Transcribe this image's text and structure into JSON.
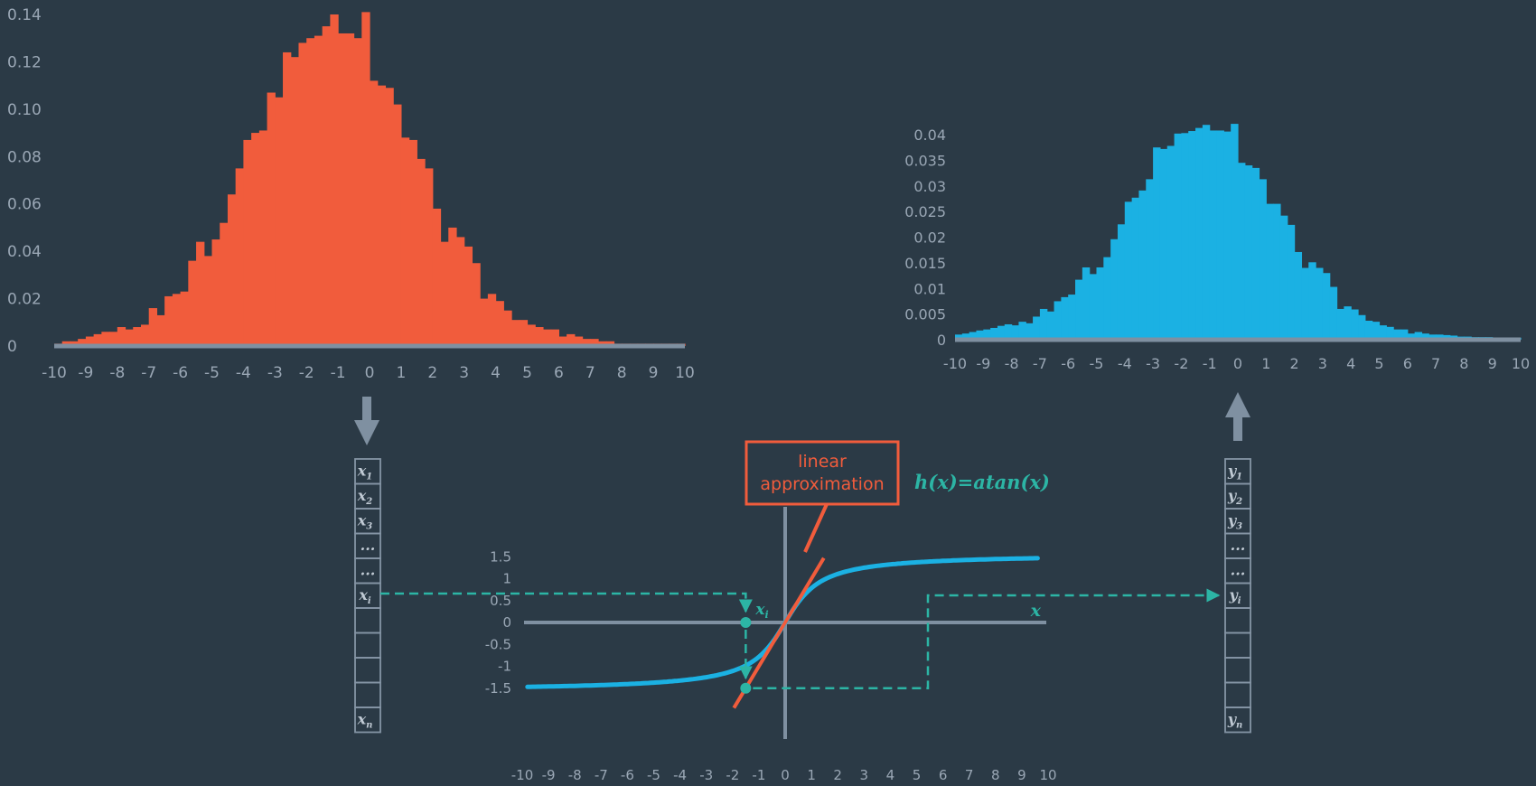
{
  "colors": {
    "background": "#2b3a46",
    "input_hist": "#f15c3c",
    "output_hist": "#1bb1e3",
    "axis": "#7f90a1",
    "tick_text": "#9aa7b5",
    "atan_curve": "#1bb1e3",
    "linear_line": "#f15c3c",
    "dashed": "#2cb5a5"
  },
  "chart_data": [
    {
      "type": "bar",
      "x": [
        -9.75,
        -9.5,
        -9.25,
        -9,
        -8.75,
        -8.5,
        -8.25,
        -8,
        -7.75,
        -7.5,
        -7.25,
        -7,
        -6.75,
        -6.5,
        -6.25,
        -6,
        -5.75,
        -5.5,
        -5.25,
        -5,
        -4.75,
        -4.5,
        -4.25,
        -4,
        -3.75,
        -3.5,
        -3.25,
        -3,
        -2.75,
        -2.5,
        -2.25,
        -2,
        -1.75,
        -1.5,
        -1.25,
        -1,
        -0.75,
        -0.5,
        -0.25,
        0,
        0.25,
        0.5,
        0.75,
        1,
        1.25,
        1.5,
        1.75,
        2,
        2.25,
        2.5,
        2.75,
        3,
        3.25,
        3.5,
        3.75,
        4,
        4.25,
        4.5,
        4.75,
        5,
        5.25,
        5.5,
        5.75,
        6,
        6.25,
        6.5,
        6.75,
        7,
        7.25,
        7.5,
        7.75,
        8,
        8.25,
        8.5,
        8.75,
        9,
        9.25,
        9.5,
        9.75,
        10
      ],
      "values": [
        0.001,
        0.002,
        0.002,
        0.003,
        0.004,
        0.005,
        0.006,
        0.006,
        0.008,
        0.007,
        0.008,
        0.009,
        0.016,
        0.013,
        0.021,
        0.022,
        0.023,
        0.036,
        0.044,
        0.038,
        0.045,
        0.052,
        0.064,
        0.075,
        0.087,
        0.09,
        0.091,
        0.107,
        0.105,
        0.124,
        0.122,
        0.128,
        0.13,
        0.131,
        0.135,
        0.14,
        0.132,
        0.132,
        0.13,
        0.141,
        0.112,
        0.11,
        0.109,
        0.102,
        0.088,
        0.087,
        0.079,
        0.075,
        0.058,
        0.044,
        0.05,
        0.046,
        0.042,
        0.035,
        0.02,
        0.022,
        0.019,
        0.015,
        0.011,
        0.011,
        0.009,
        0.008,
        0.007,
        0.007,
        0.004,
        0.005,
        0.004,
        0.003,
        0.003,
        0.002,
        0.002,
        0.001,
        0.001,
        0.001,
        0.001,
        0.001,
        0.001,
        0.001,
        0.001,
        0.001
      ],
      "xlim": [
        -10,
        10
      ],
      "ylim": [
        0,
        0.14
      ],
      "xticks": [
        "-10",
        "-9",
        "-8",
        "-7",
        "-6",
        "-5",
        "-4",
        "-3",
        "-2",
        "-1",
        "0",
        "1",
        "2",
        "3",
        "4",
        "5",
        "6",
        "7",
        "8",
        "9",
        "10"
      ],
      "yticks": [
        "0",
        "0.02",
        "0.04",
        "0.06",
        "0.08",
        "0.10",
        "0.12",
        "0.14"
      ]
    },
    {
      "type": "bar",
      "x": [
        -9.75,
        -9.5,
        -9.25,
        -9,
        -8.75,
        -8.5,
        -8.25,
        -8,
        -7.75,
        -7.5,
        -7.25,
        -7,
        -6.75,
        -6.5,
        -6.25,
        -6,
        -5.75,
        -5.5,
        -5.25,
        -5,
        -4.75,
        -4.5,
        -4.25,
        -4,
        -3.75,
        -3.5,
        -3.25,
        -3,
        -2.75,
        -2.5,
        -2.25,
        -2,
        -1.75,
        -1.5,
        -1.25,
        -1,
        -0.75,
        -0.5,
        -0.25,
        0,
        0.25,
        0.5,
        0.75,
        1,
        1.25,
        1.5,
        1.75,
        2,
        2.25,
        2.5,
        2.75,
        3,
        3.25,
        3.5,
        3.75,
        4,
        4.25,
        4.5,
        4.75,
        5,
        5.25,
        5.5,
        5.75,
        6,
        6.25,
        6.5,
        6.75,
        7,
        7.25,
        7.5,
        7.75,
        8,
        8.25,
        8.5,
        8.75,
        9,
        9.25,
        9.5,
        9.75,
        10
      ],
      "values": [
        0.001,
        0.0012,
        0.0015,
        0.0018,
        0.002,
        0.0023,
        0.0027,
        0.003,
        0.0028,
        0.0035,
        0.0032,
        0.0045,
        0.006,
        0.0055,
        0.0075,
        0.0083,
        0.0088,
        0.0117,
        0.0141,
        0.0128,
        0.0141,
        0.0161,
        0.0196,
        0.0225,
        0.0269,
        0.0277,
        0.0291,
        0.0313,
        0.0375,
        0.0372,
        0.0378,
        0.0402,
        0.0403,
        0.0407,
        0.0413,
        0.0419,
        0.0408,
        0.0408,
        0.0406,
        0.0421,
        0.0345,
        0.034,
        0.0335,
        0.0313,
        0.0265,
        0.0265,
        0.0242,
        0.0224,
        0.0171,
        0.014,
        0.0151,
        0.014,
        0.013,
        0.0103,
        0.006,
        0.0065,
        0.0059,
        0.0048,
        0.0037,
        0.0035,
        0.0028,
        0.0025,
        0.002,
        0.002,
        0.0012,
        0.0015,
        0.0012,
        0.001,
        0.001,
        0.0009,
        0.0008,
        0.0006,
        0.0006,
        0.0005,
        0.0005,
        0.0005,
        0.0004,
        0.0004,
        0.0004,
        0.0004
      ],
      "xlim": [
        -10,
        10
      ],
      "ylim": [
        0,
        0.04
      ],
      "xticks": [
        "-10",
        "-9",
        "-8",
        "-7",
        "-6",
        "-5",
        "-4",
        "-3",
        "-2",
        "-1",
        "0",
        "1",
        "2",
        "3",
        "4",
        "5",
        "6",
        "7",
        "8",
        "9",
        "10"
      ],
      "yticks": [
        "0",
        "0.005",
        "0.01",
        "0.015",
        "0.02",
        "0.025",
        "0.03",
        "0.035",
        "0.04"
      ]
    },
    {
      "type": "line",
      "xlim": [
        -10,
        10
      ],
      "ylim": [
        -1.5,
        1.5
      ],
      "xticks": [
        "-10",
        "-9",
        "-8",
        "-7",
        "-6",
        "-5",
        "-4",
        "-3",
        "-2",
        "-1",
        "0",
        "1",
        "2",
        "3",
        "4",
        "5",
        "6",
        "7",
        "8",
        "9",
        "10"
      ],
      "yticks": [
        "-1.5",
        "-1",
        "-0.5",
        "0",
        "0.5",
        "1",
        "1.5"
      ],
      "function_label": "h(x)=atan(x)",
      "axis_label_x": "x",
      "point_label": "x",
      "point_label_sub": "i",
      "sample_x": -1.5,
      "linear_slope": 1,
      "annotation_line1": "linear",
      "annotation_line2": "approximation"
    }
  ],
  "input_vector": {
    "cells": [
      {
        "main": "x",
        "sub": "1"
      },
      {
        "main": "x",
        "sub": "2"
      },
      {
        "main": "x",
        "sub": "3"
      },
      {
        "main": "...",
        "sub": ""
      },
      {
        "main": "...",
        "sub": ""
      },
      {
        "main": "x",
        "sub": "i"
      },
      {
        "main": "",
        "sub": ""
      },
      {
        "main": "",
        "sub": ""
      },
      {
        "main": "",
        "sub": ""
      },
      {
        "main": "",
        "sub": ""
      },
      {
        "main": "x",
        "sub": "n"
      }
    ]
  },
  "output_vector": {
    "cells": [
      {
        "main": "y",
        "sub": "1"
      },
      {
        "main": "y",
        "sub": "2"
      },
      {
        "main": "y",
        "sub": "3"
      },
      {
        "main": "...",
        "sub": ""
      },
      {
        "main": "...",
        "sub": ""
      },
      {
        "main": "y",
        "sub": "i"
      },
      {
        "main": "",
        "sub": ""
      },
      {
        "main": "",
        "sub": ""
      },
      {
        "main": "",
        "sub": ""
      },
      {
        "main": "",
        "sub": ""
      },
      {
        "main": "y",
        "sub": "n"
      }
    ]
  }
}
